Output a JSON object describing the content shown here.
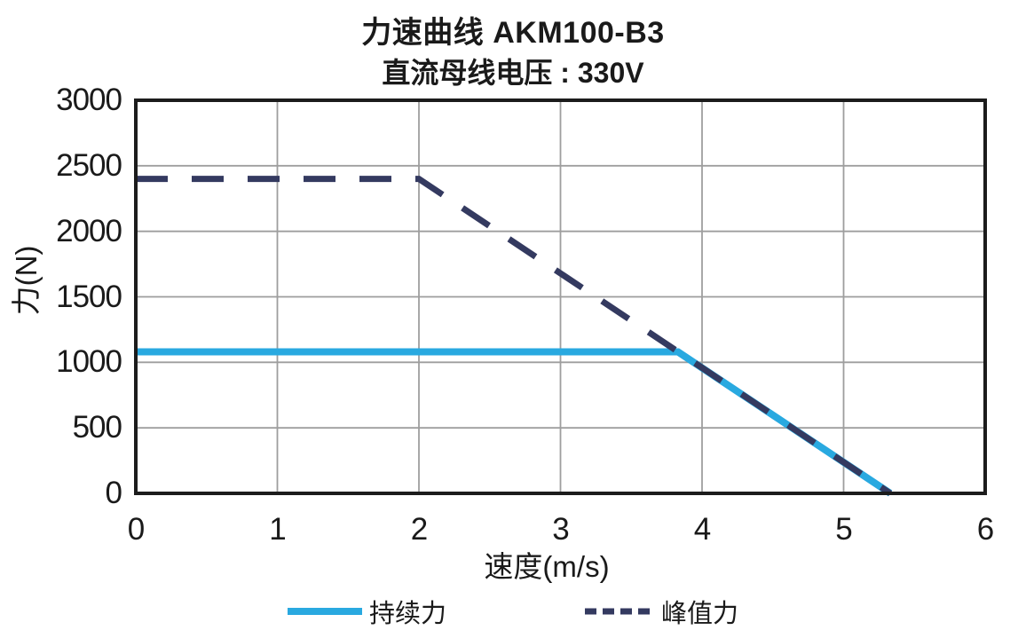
{
  "title": "力速曲线 AKM100-B3",
  "subtitle": "直流母线电压 : 330V",
  "chart_data": {
    "type": "line",
    "title": "力速曲线 AKM100-B3",
    "subtitle": "直流母线电压 : 330V",
    "xlabel": "速度(m/s)",
    "ylabel": "力(N)",
    "xlim": [
      0,
      6
    ],
    "ylim": [
      0,
      3000
    ],
    "xticks": [
      0,
      1,
      2,
      3,
      4,
      5,
      6
    ],
    "yticks": [
      0,
      500,
      1000,
      1500,
      2000,
      2500,
      3000
    ],
    "grid": true,
    "legend_position": "bottom",
    "frame_color": "#1c1c1c",
    "grid_color": "#9e9e9e",
    "text_color": "#1a1a1a",
    "series": [
      {
        "name": "持续力",
        "style": "solid",
        "color": "#29a9e0",
        "width": 8,
        "points": [
          [
            0,
            1080
          ],
          [
            3.83,
            1080
          ],
          [
            5.33,
            0
          ]
        ]
      },
      {
        "name": "峰值力",
        "style": "dashed",
        "color": "#343a60",
        "width": 7,
        "dash": "36 27",
        "legend_dash": "13 7",
        "points": [
          [
            0,
            2400
          ],
          [
            2,
            2400
          ],
          [
            5.33,
            0
          ]
        ]
      }
    ]
  }
}
